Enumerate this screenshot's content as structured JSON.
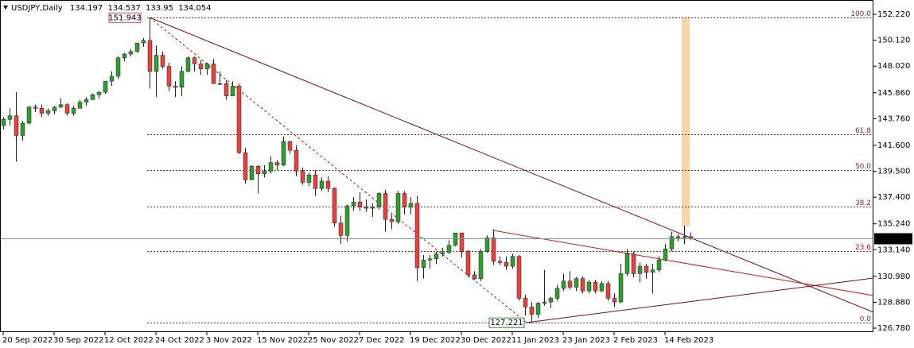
{
  "chart_data": {
    "type": "candlestick",
    "symbol": "USDJPY,Daily",
    "up_color": "#2e9e2e",
    "down_color": "#e8403c",
    "ylim": [
      126.46,
      153.38
    ],
    "yticks": [
      {
        "value": 152.22,
        "label": "152.220"
      },
      {
        "value": 150.12,
        "label": "150.120"
      },
      {
        "value": 148.02,
        "label": "148.020"
      },
      {
        "value": 145.86,
        "label": "145.860"
      },
      {
        "value": 143.76,
        "label": "143.760"
      },
      {
        "value": 141.6,
        "label": "141.600"
      },
      {
        "value": 139.5,
        "label": "139.500"
      },
      {
        "value": 137.4,
        "label": "137.400"
      },
      {
        "value": 135.24,
        "label": "135.240"
      },
      {
        "value": 133.14,
        "label": "133.140"
      },
      {
        "value": 130.98,
        "label": "130.980"
      },
      {
        "value": 128.88,
        "label": "128.880"
      },
      {
        "value": 126.78,
        "label": "126.780"
      }
    ],
    "categories": [
      "20 Sep 2022",
      null,
      null,
      null,
      null,
      null,
      null,
      null,
      "30 Sep 2022",
      null,
      null,
      null,
      null,
      null,
      null,
      null,
      "12 Oct 2022",
      null,
      null,
      null,
      null,
      null,
      null,
      null,
      "24 Oct 2022",
      null,
      null,
      null,
      null,
      null,
      null,
      null,
      "3 Nov 2022",
      null,
      null,
      null,
      null,
      null,
      null,
      null,
      "15 Nov 2022",
      null,
      null,
      null,
      null,
      null,
      null,
      null,
      "25 Nov 2022",
      null,
      null,
      null,
      null,
      null,
      null,
      null,
      "7 Dec 2022",
      null,
      null,
      null,
      null,
      null,
      null,
      null,
      "19 Dec 2022",
      null,
      null,
      null,
      null,
      null,
      null,
      null,
      "30 Dec 2022",
      null,
      null,
      null,
      null,
      null,
      null,
      null,
      "11 Jan 2023",
      null,
      null,
      null,
      null,
      null,
      null,
      null,
      "23 Jan 2023",
      null,
      null,
      null,
      null,
      null,
      null,
      null,
      "2 Feb 2023",
      null,
      null,
      null,
      null,
      null,
      null,
      null,
      "14 Feb 2023",
      null,
      null,
      null,
      null
    ],
    "ohlc": [
      [
        143.2,
        143.9,
        142.9,
        143.7
      ],
      [
        143.7,
        144.6,
        143.2,
        144.0
      ],
      [
        144.0,
        145.9,
        140.3,
        142.4
      ],
      [
        142.4,
        143.6,
        142.0,
        143.4
      ],
      [
        143.4,
        144.8,
        143.3,
        144.7
      ],
      [
        144.7,
        144.9,
        144.3,
        144.6
      ],
      [
        144.6,
        144.9,
        143.9,
        144.2
      ],
      [
        144.2,
        144.6,
        144.0,
        144.4
      ],
      [
        144.4,
        144.8,
        144.1,
        144.7
      ],
      [
        144.7,
        145.4,
        144.6,
        144.9
      ],
      [
        144.9,
        145.0,
        144.0,
        144.2
      ],
      [
        144.2,
        144.8,
        144.0,
        144.6
      ],
      [
        144.6,
        145.3,
        144.6,
        145.1
      ],
      [
        145.1,
        145.5,
        144.8,
        145.3
      ],
      [
        145.3,
        145.8,
        145.3,
        145.7
      ],
      [
        145.7,
        146.0,
        145.4,
        145.9
      ],
      [
        145.9,
        146.8,
        145.8,
        146.8
      ],
      [
        146.8,
        147.6,
        146.4,
        147.2
      ],
      [
        147.2,
        148.8,
        147.0,
        148.7
      ],
      [
        148.7,
        149.1,
        148.4,
        149.0
      ],
      [
        149.0,
        149.4,
        148.8,
        149.2
      ],
      [
        149.2,
        149.9,
        149.1,
        149.9
      ],
      [
        149.9,
        150.3,
        149.6,
        150.1
      ],
      [
        150.1,
        151.943,
        146.2,
        147.6
      ],
      [
        147.6,
        149.7,
        145.5,
        148.9
      ],
      [
        148.9,
        149.2,
        147.8,
        148.0
      ],
      [
        148.0,
        148.3,
        146.0,
        146.4
      ],
      [
        146.4,
        146.8,
        145.5,
        146.3
      ],
      [
        146.3,
        148.0,
        145.6,
        147.6
      ],
      [
        147.6,
        148.8,
        147.5,
        148.7
      ],
      [
        148.7,
        148.8,
        147.6,
        148.2
      ],
      [
        148.2,
        148.5,
        147.3,
        147.8
      ],
      [
        147.8,
        148.3,
        147.3,
        148.2
      ],
      [
        148.2,
        148.6,
        146.6,
        146.6
      ],
      [
        146.6,
        147.6,
        146.5,
        146.6
      ],
      [
        146.6,
        146.9,
        145.3,
        145.6
      ],
      [
        145.6,
        146.8,
        145.6,
        146.4
      ],
      [
        146.4,
        146.6,
        140.9,
        141.0
      ],
      [
        141.0,
        141.4,
        138.5,
        138.8
      ],
      [
        138.8,
        140.0,
        138.8,
        139.9
      ],
      [
        139.9,
        140.0,
        137.7,
        139.3
      ],
      [
        139.3,
        140.0,
        139.0,
        139.5
      ],
      [
        139.5,
        140.7,
        139.3,
        140.2
      ],
      [
        140.2,
        140.4,
        139.6,
        140.0
      ],
      [
        140.0,
        142.3,
        139.9,
        141.9
      ],
      [
        141.9,
        142.0,
        140.9,
        141.2
      ],
      [
        141.2,
        141.6,
        139.1,
        139.5
      ],
      [
        139.5,
        139.8,
        138.4,
        138.6
      ],
      [
        138.6,
        139.4,
        138.3,
        139.2
      ],
      [
        139.2,
        139.6,
        137.5,
        138.1
      ],
      [
        138.1,
        139.0,
        137.9,
        138.7
      ],
      [
        138.7,
        139.1,
        137.8,
        138.1
      ],
      [
        138.1,
        138.2,
        135.0,
        135.3
      ],
      [
        135.3,
        135.9,
        133.6,
        134.3
      ],
      [
        134.3,
        136.8,
        133.8,
        136.7
      ],
      [
        136.7,
        137.4,
        136.3,
        137.0
      ],
      [
        137.0,
        137.8,
        136.3,
        136.6
      ],
      [
        136.6,
        137.2,
        136.2,
        136.5
      ],
      [
        136.5,
        136.9,
        135.8,
        136.6
      ],
      [
        136.6,
        137.8,
        136.4,
        137.7
      ],
      [
        137.7,
        138.0,
        134.6,
        135.6
      ],
      [
        135.6,
        136.0,
        134.8,
        135.4
      ],
      [
        135.4,
        137.9,
        135.2,
        137.7
      ],
      [
        137.7,
        137.9,
        136.0,
        136.6
      ],
      [
        136.6,
        137.4,
        136.0,
        136.9
      ],
      [
        136.9,
        137.5,
        130.6,
        131.7
      ],
      [
        131.7,
        132.7,
        130.8,
        132.3
      ],
      [
        132.3,
        132.7,
        131.6,
        132.4
      ],
      [
        132.4,
        133.0,
        132.0,
        132.8
      ],
      [
        132.8,
        133.3,
        132.6,
        132.9
      ],
      [
        132.9,
        133.9,
        132.8,
        133.5
      ],
      [
        133.5,
        134.5,
        133.4,
        134.5
      ],
      [
        134.5,
        134.5,
        132.5,
        133.0
      ],
      [
        133.0,
        133.1,
        130.9,
        131.1
      ],
      [
        131.1,
        131.4,
        130.7,
        130.8
      ],
      [
        130.8,
        133.2,
        130.6,
        133.0
      ],
      [
        133.0,
        134.3,
        132.9,
        134.1
      ],
      [
        134.1,
        134.8,
        131.9,
        132.2
      ],
      [
        132.2,
        132.6,
        131.9,
        132.1
      ],
      [
        132.1,
        132.6,
        131.5,
        131.8
      ],
      [
        131.8,
        132.8,
        131.6,
        132.6
      ],
      [
        132.6,
        132.7,
        129.0,
        129.2
      ],
      [
        129.2,
        129.5,
        127.8,
        128.5
      ],
      [
        128.5,
        128.9,
        127.221,
        127.9
      ],
      [
        127.9,
        128.9,
        127.6,
        128.8
      ],
      [
        128.8,
        131.5,
        128.6,
        128.9
      ],
      [
        128.9,
        129.3,
        128.4,
        129.2
      ],
      [
        129.2,
        130.3,
        129.0,
        130.0
      ],
      [
        130.0,
        131.2,
        129.8,
        130.6
      ],
      [
        130.6,
        131.4,
        129.9,
        130.1
      ],
      [
        130.1,
        130.9,
        129.8,
        130.8
      ],
      [
        130.8,
        131.0,
        129.6,
        129.8
      ],
      [
        129.8,
        130.7,
        129.6,
        130.5
      ],
      [
        130.5,
        130.7,
        129.6,
        129.8
      ],
      [
        129.8,
        130.6,
        129.7,
        130.4
      ],
      [
        130.4,
        130.6,
        129.0,
        129.2
      ],
      [
        129.2,
        129.6,
        128.5,
        128.9
      ],
      [
        128.9,
        132.0,
        128.8,
        131.2
      ],
      [
        131.2,
        133.2,
        131.0,
        132.8
      ],
      [
        132.8,
        133.0,
        130.9,
        131.2
      ],
      [
        131.2,
        132.1,
        130.5,
        131.8
      ],
      [
        131.8,
        132.0,
        130.8,
        131.3
      ],
      [
        131.3,
        132.0,
        129.6,
        131.5
      ],
      [
        131.5,
        132.6,
        131.3,
        132.3
      ],
      [
        132.3,
        133.6,
        132.2,
        133.2
      ],
      [
        133.2,
        134.6,
        133.0,
        134.2
      ],
      [
        134.2,
        134.4,
        133.8,
        134.1
      ],
      [
        134.1,
        135.1,
        133.6,
        134.2
      ],
      [
        134.197,
        134.537,
        133.95,
        134.054
      ]
    ],
    "fibonacci": {
      "high": 151.943,
      "low": 127.221,
      "levels": [
        {
          "value": 100,
          "label": "100.0"
        },
        61.8,
        {
          "value": 50,
          "label": "50.0"
        },
        38.2,
        23.6,
        {
          "value": 0,
          "label": "0.0"
        }
      ]
    }
  }
}
